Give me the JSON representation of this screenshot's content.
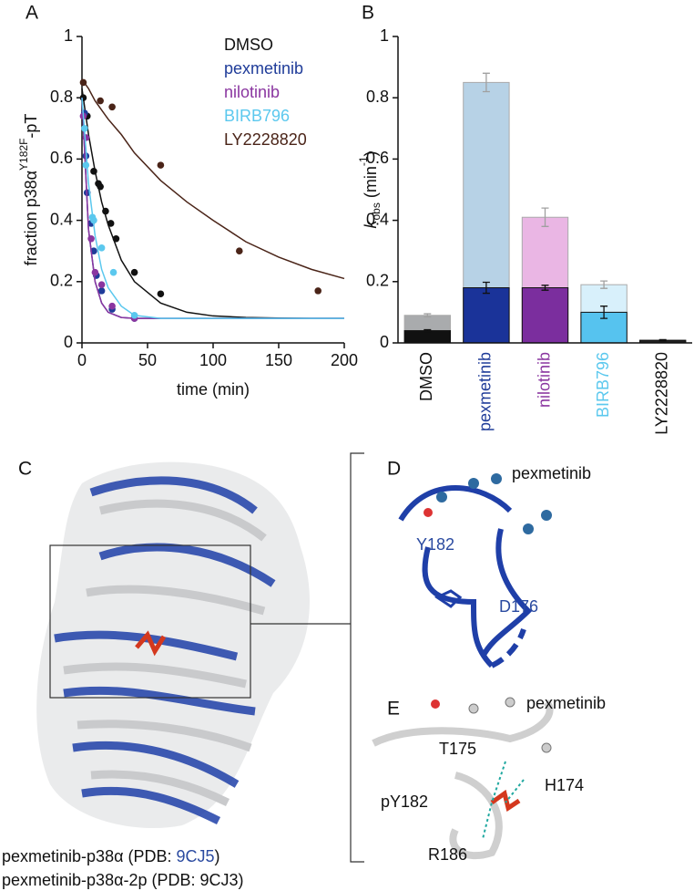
{
  "chart_data": [
    {
      "type": "scatter",
      "panel_label": "A",
      "xlabel": "time (min)",
      "ylabel": "fraction p38α",
      "ylabel_superscript": "Y182F",
      "ylabel_suffix": "-pT",
      "xlim": [
        0,
        200
      ],
      "xticks": [
        0,
        50,
        100,
        150,
        200
      ],
      "ylim": [
        0,
        1
      ],
      "yticks": [
        0,
        0.2,
        0.4,
        0.6,
        0.8,
        1
      ],
      "legend": "top-right",
      "series": [
        {
          "name": "DMSO",
          "color": "#111111",
          "x": [
            1,
            4,
            9,
            12.5,
            14,
            18,
            22,
            26,
            40,
            60
          ],
          "values": [
            0.8,
            0.74,
            0.56,
            0.52,
            0.51,
            0.43,
            0.39,
            0.34,
            0.23,
            0.16
          ],
          "fit": {
            "x": [
              0,
              5,
              10,
              15,
              20,
              30,
              40,
              60,
              80,
              100,
              125,
              150,
              175,
              200
            ],
            "values": [
              0.83,
              0.68,
              0.56,
              0.46,
              0.385,
              0.27,
              0.2,
              0.13,
              0.1,
              0.088,
              0.083,
              0.081,
              0.08,
              0.08
            ]
          }
        },
        {
          "name": "pexmetinib",
          "color": "#1f3c99",
          "x": [
            2,
            3,
            4,
            7,
            9,
            11,
            15,
            23,
            40
          ],
          "values": [
            0.75,
            0.61,
            0.49,
            0.39,
            0.3,
            0.22,
            0.17,
            0.11,
            0.08
          ],
          "fit": {
            "x": [
              0,
              5,
              10,
              15,
              20,
              30,
              40,
              60,
              80,
              100,
              125,
              150,
              175,
              200
            ],
            "values": [
              0.8,
              0.37,
              0.2,
              0.13,
              0.1,
              0.083,
              0.08,
              0.08,
              0.08,
              0.08,
              0.08,
              0.08,
              0.08,
              0.08
            ]
          }
        },
        {
          "name": "nilotinib",
          "color": "#8a36a0",
          "x": [
            1,
            3,
            7,
            10,
            15,
            23,
            40
          ],
          "values": [
            0.74,
            0.67,
            0.34,
            0.23,
            0.19,
            0.12,
            0.08
          ],
          "fit": {
            "x": [
              0,
              5,
              10,
              15,
              20,
              30,
              40,
              60,
              80,
              100,
              125,
              150,
              175,
              200
            ],
            "values": [
              0.8,
              0.37,
              0.2,
              0.13,
              0.1,
              0.083,
              0.08,
              0.08,
              0.08,
              0.08,
              0.08,
              0.08,
              0.08,
              0.08
            ]
          }
        },
        {
          "name": "BIRB796",
          "color": "#5bc8ee",
          "x": [
            2,
            3,
            8,
            9,
            15,
            24,
            40
          ],
          "values": [
            0.7,
            0.58,
            0.41,
            0.4,
            0.31,
            0.23,
            0.09
          ],
          "fit": {
            "x": [
              0,
              5,
              10,
              15,
              20,
              30,
              40,
              60,
              80,
              100,
              125,
              150,
              175,
              200
            ],
            "values": [
              0.8,
              0.52,
              0.35,
              0.24,
              0.18,
              0.12,
              0.09,
              0.08,
              0.08,
              0.08,
              0.08,
              0.08,
              0.08,
              0.08
            ]
          }
        },
        {
          "name": "LY2228820",
          "color": "#4a2418",
          "x": [
            1,
            14,
            23,
            60,
            120,
            180
          ],
          "values": [
            0.85,
            0.79,
            0.77,
            0.58,
            0.3,
            0.17
          ],
          "fit": {
            "x": [
              0,
              5,
              10,
              15,
              20,
              30,
              40,
              60,
              80,
              100,
              125,
              150,
              175,
              200
            ],
            "values": [
              0.86,
              0.83,
              0.79,
              0.76,
              0.73,
              0.68,
              0.62,
              0.53,
              0.46,
              0.4,
              0.33,
              0.28,
              0.24,
              0.21
            ]
          }
        }
      ]
    },
    {
      "type": "bar",
      "panel_label": "B",
      "ylabel": "k",
      "ylabel_subscript": "obs",
      "ylabel_suffix": " (min",
      "ylabel_superscript": "-1",
      "ylabel_close": ")",
      "ylim": [
        0,
        1
      ],
      "yticks": [
        0,
        0.2,
        0.4,
        0.6,
        0.8,
        1
      ],
      "categories": [
        "DMSO",
        "pexmetinib",
        "nilotinib",
        "BIRB796",
        "LY2228820"
      ],
      "category_colors": [
        "#111111",
        "#1f3c99",
        "#8a36a0",
        "#5bc8ee",
        "#111111"
      ],
      "series": [
        {
          "colors": [
            "#a9abad",
            "#b7d2e6",
            "#eab6e4",
            "#d8f0fb",
            "#9a9a9a"
          ],
          "error_color": "#a0a0a0",
          "values": [
            0.09,
            0.85,
            0.41,
            0.19,
            0.01
          ],
          "errors": [
            0.005,
            0.03,
            0.03,
            0.012,
            0.002
          ]
        },
        {
          "colors": [
            "#111111",
            "#1a3399",
            "#7b2e9e",
            "#56c3ef",
            "#222222"
          ],
          "error_color": "#111111",
          "values": [
            0.04,
            0.18,
            0.18,
            0.1,
            0.008
          ],
          "errors": [
            0.003,
            0.018,
            0.008,
            0.02,
            0.002
          ]
        }
      ]
    }
  ],
  "panel_c": {
    "label": "C",
    "caption_1": "pexmetinib-p38α (PDB: ",
    "caption_1_code": "9CJ5",
    "caption_1_close": ")",
    "caption_2": "pexmetinib-p38α-2p (PDB: 9CJ3)"
  },
  "panel_d": {
    "label": "D",
    "ligand": "pexmetinib",
    "residue_1": "Y182",
    "residue_2": "D176"
  },
  "panel_e": {
    "label": "E",
    "ligand": "pexmetinib",
    "residue_1": "T175",
    "residue_2": "H174",
    "residue_3": "pY182",
    "residue_4": "R186"
  }
}
